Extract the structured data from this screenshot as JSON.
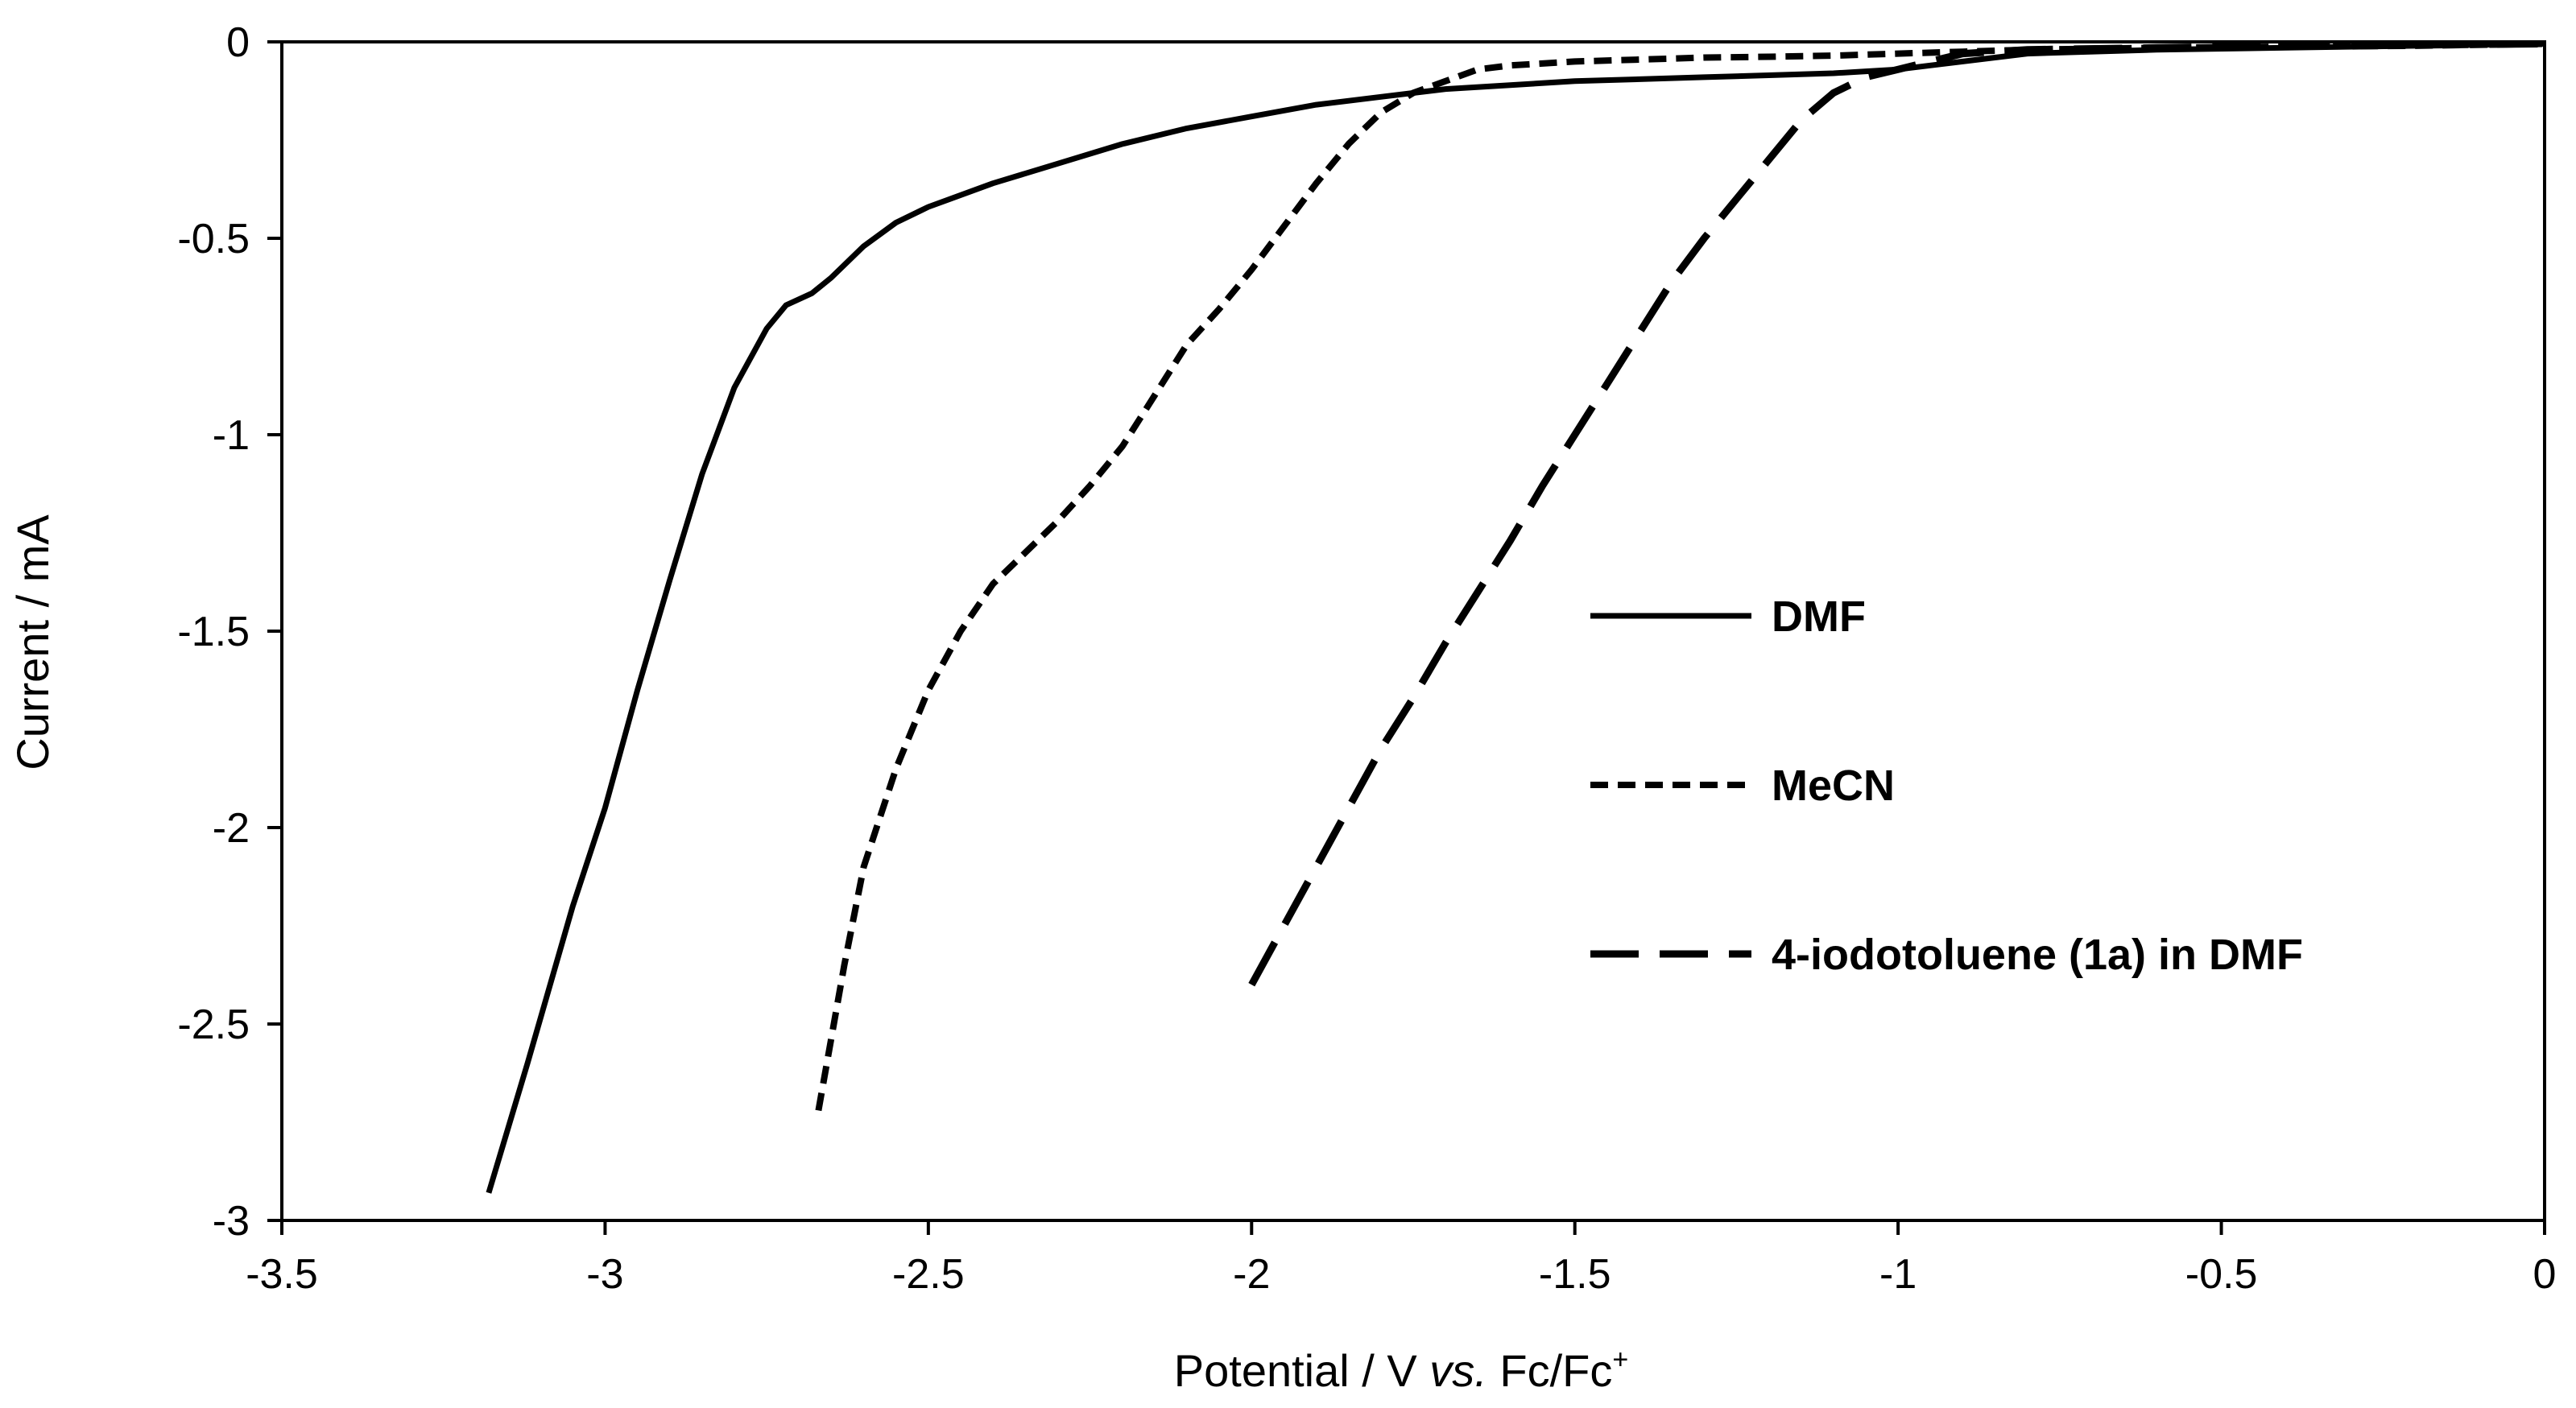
{
  "chart_data": {
    "type": "line",
    "title": "",
    "xlabel": {
      "prefix": "Potential / V ",
      "italic": "vs.",
      "suffix": " Fc/Fc",
      "superscript": "+"
    },
    "ylabel": "Current / mA",
    "xlim": [
      -3.5,
      0
    ],
    "ylim": [
      -3,
      0
    ],
    "xticks": [
      -3.5,
      -3,
      -2.5,
      -2,
      -1.5,
      -1,
      -0.5,
      0
    ],
    "xtick_labels": [
      "-3.5",
      "-3",
      "-2.5",
      "-2",
      "-1.5",
      "-1",
      "-0.5",
      "0"
    ],
    "yticks": [
      0,
      -0.5,
      -1,
      -1.5,
      -2,
      -2.5,
      -3
    ],
    "ytick_labels": [
      "0",
      "-0.5",
      "-1",
      "-1.5",
      "-2",
      "-2.5",
      "-3"
    ],
    "grid": false,
    "legend_position": "center-right",
    "series": [
      {
        "name": "DMF",
        "style": "solid",
        "x": [
          -3.18,
          -3.12,
          -3.05,
          -3.0,
          -2.95,
          -2.9,
          -2.85,
          -2.8,
          -2.75,
          -2.72,
          -2.68,
          -2.65,
          -2.6,
          -2.55,
          -2.5,
          -2.4,
          -2.3,
          -2.2,
          -2.1,
          -2.0,
          -1.9,
          -1.8,
          -1.7,
          -1.6,
          -1.5,
          -1.4,
          -1.3,
          -1.2,
          -1.1,
          -1.0,
          -0.9,
          -0.8,
          -0.6,
          -0.4,
          -0.2,
          0.0
        ],
        "y": [
          -2.93,
          -2.6,
          -2.2,
          -1.95,
          -1.65,
          -1.37,
          -1.1,
          -0.88,
          -0.73,
          -0.67,
          -0.64,
          -0.6,
          -0.52,
          -0.46,
          -0.42,
          -0.36,
          -0.31,
          -0.26,
          -0.22,
          -0.19,
          -0.16,
          -0.14,
          -0.12,
          -0.11,
          -0.1,
          -0.095,
          -0.09,
          -0.085,
          -0.08,
          -0.07,
          -0.05,
          -0.03,
          -0.02,
          -0.015,
          -0.01,
          -0.005
        ]
      },
      {
        "name": "MeCN",
        "style": "short-dash",
        "x": [
          -2.67,
          -2.63,
          -2.6,
          -2.55,
          -2.5,
          -2.45,
          -2.4,
          -2.35,
          -2.3,
          -2.25,
          -2.2,
          -2.15,
          -2.1,
          -2.05,
          -2.0,
          -1.95,
          -1.9,
          -1.85,
          -1.8,
          -1.75,
          -1.7,
          -1.65,
          -1.6,
          -1.5,
          -1.4,
          -1.3,
          -1.2,
          -1.1,
          -1.0,
          -0.9,
          -0.8,
          -0.6,
          -0.4,
          -0.2,
          0.0
        ],
        "y": [
          -2.72,
          -2.35,
          -2.1,
          -1.85,
          -1.65,
          -1.5,
          -1.38,
          -1.3,
          -1.22,
          -1.13,
          -1.03,
          -0.9,
          -0.77,
          -0.68,
          -0.58,
          -0.47,
          -0.36,
          -0.26,
          -0.18,
          -0.13,
          -0.1,
          -0.07,
          -0.06,
          -0.05,
          -0.045,
          -0.04,
          -0.038,
          -0.035,
          -0.03,
          -0.025,
          -0.02,
          -0.015,
          -0.012,
          -0.01,
          -0.005
        ]
      },
      {
        "name": "4-iodotoluene (1a) in DMF",
        "style": "long-dash",
        "x": [
          -2.0,
          -1.95,
          -1.9,
          -1.85,
          -1.8,
          -1.75,
          -1.7,
          -1.65,
          -1.6,
          -1.55,
          -1.5,
          -1.45,
          -1.4,
          -1.35,
          -1.3,
          -1.25,
          -1.2,
          -1.15,
          -1.1,
          -1.05,
          -1.0,
          -0.95,
          -0.9,
          -0.8,
          -0.6,
          -0.4,
          -0.2,
          0.0
        ],
        "y": [
          -2.4,
          -2.25,
          -2.1,
          -1.95,
          -1.8,
          -1.67,
          -1.53,
          -1.4,
          -1.27,
          -1.13,
          -1.0,
          -0.87,
          -0.74,
          -0.61,
          -0.5,
          -0.4,
          -0.3,
          -0.2,
          -0.13,
          -0.09,
          -0.07,
          -0.05,
          -0.03,
          -0.02,
          -0.015,
          -0.01,
          -0.008,
          -0.005
        ]
      }
    ]
  }
}
